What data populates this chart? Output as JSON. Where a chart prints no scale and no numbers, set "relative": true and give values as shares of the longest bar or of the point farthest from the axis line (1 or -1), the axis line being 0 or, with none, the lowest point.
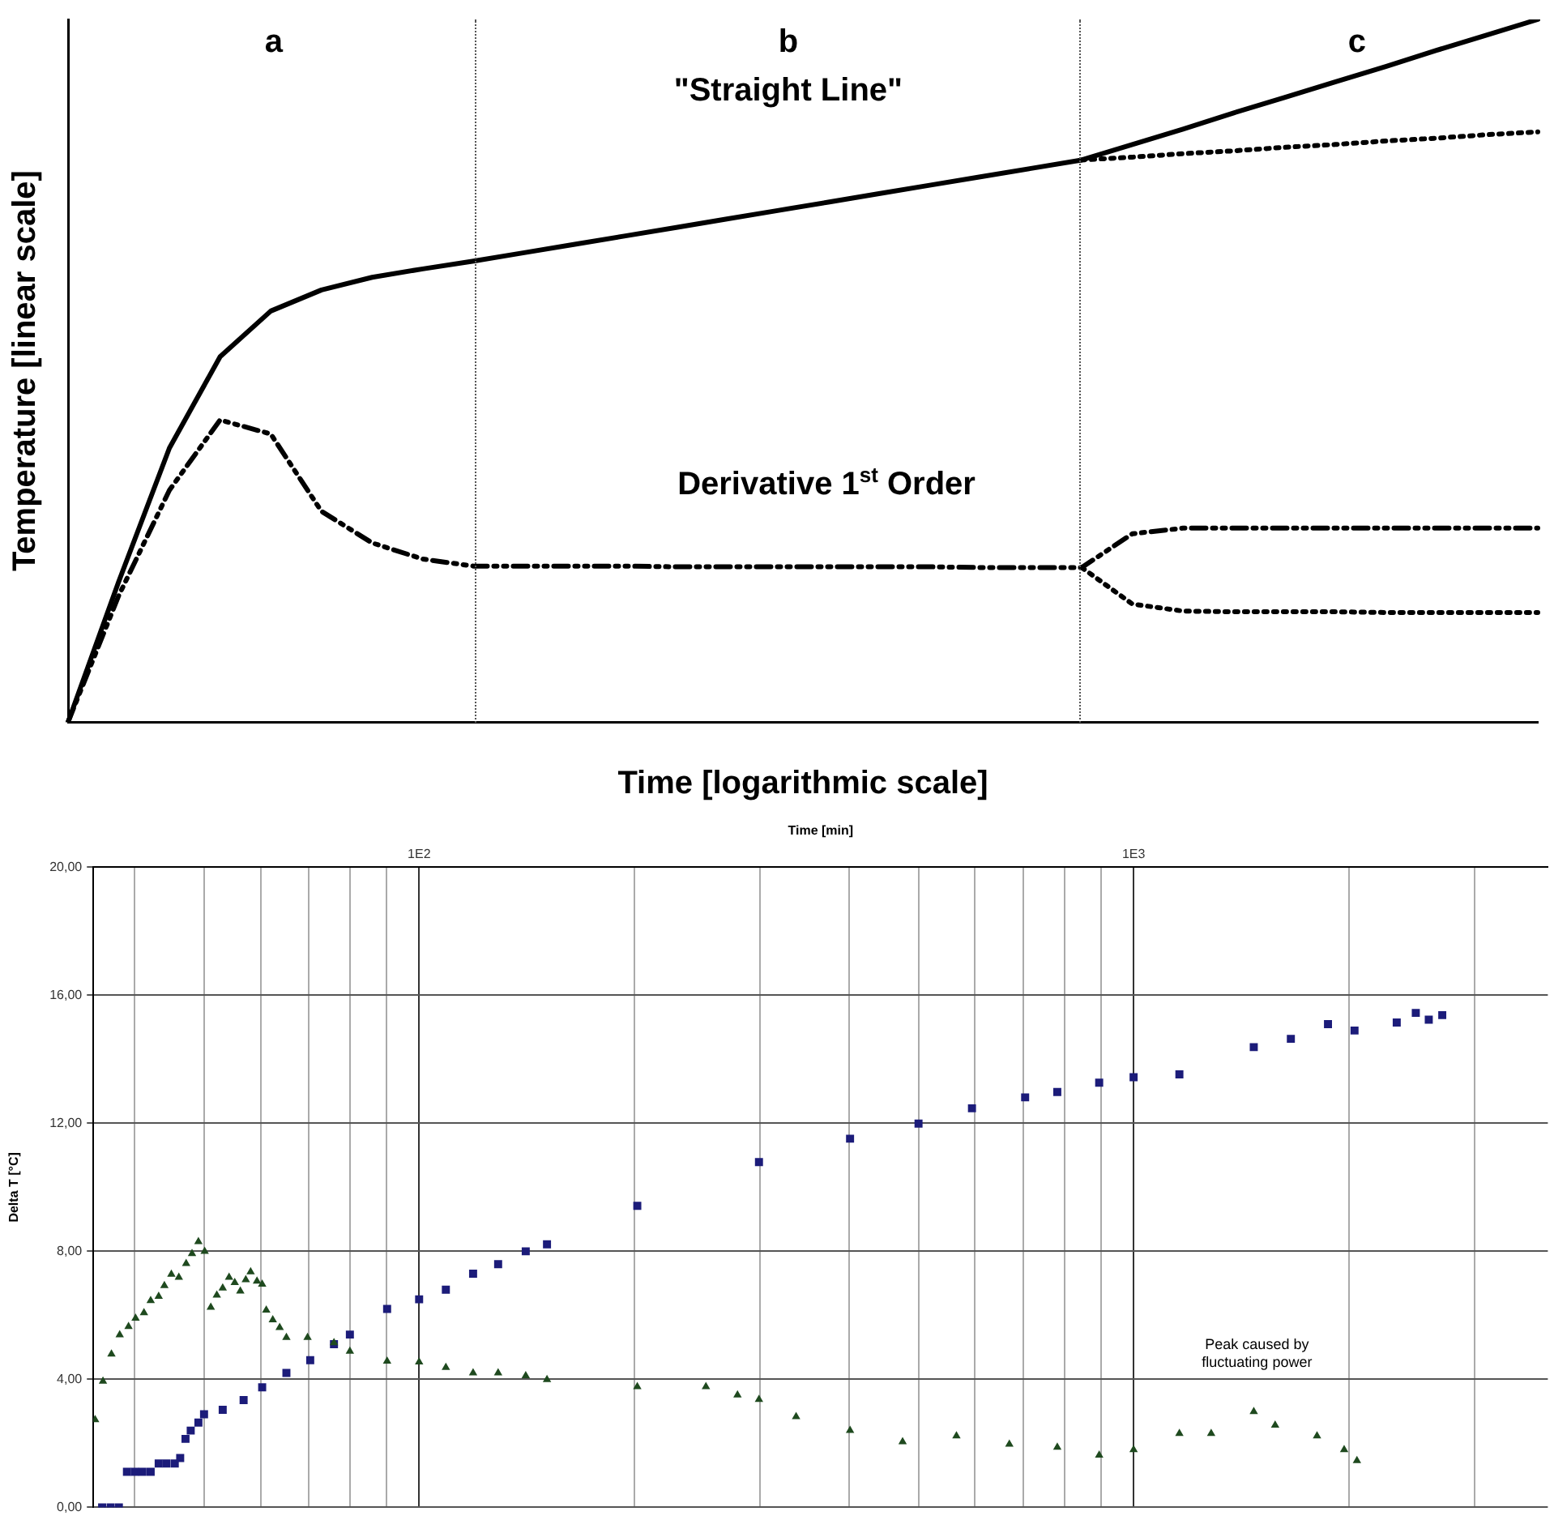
{
  "chart_data": [
    {
      "type": "line",
      "relative": true,
      "xlabel": "Time [logarithmic scale]",
      "ylabel": "Temperature [linear scale]",
      "grid": false,
      "legend": false,
      "marker": "none",
      "categories": [
        null,
        null,
        null,
        null,
        null,
        null,
        null,
        null,
        null,
        null,
        null,
        null,
        null,
        null,
        null,
        null,
        null,
        null,
        null,
        null,
        null,
        null,
        null,
        null,
        null,
        null,
        null,
        null,
        null,
        null
      ],
      "series": [
        {
          "color": "#000000",
          "line_style": "solid",
          "values": [
            0,
            0.2,
            0.39,
            0.52,
            0.585,
            0.615,
            0.633,
            0.645,
            0.656,
            0.668,
            0.68,
            0.692,
            0.704,
            0.716,
            0.728,
            0.74,
            0.752,
            0.764,
            0.776,
            0.788,
            0.8,
            0.822,
            0.844,
            0.867,
            0.889,
            0.911,
            0.933,
            0.956,
            0.978,
            1.0
          ]
        },
        {
          "color": "#000000",
          "line_style": "dotted",
          "values": [
            null,
            null,
            null,
            null,
            null,
            null,
            null,
            null,
            null,
            null,
            null,
            null,
            null,
            null,
            null,
            null,
            null,
            null,
            null,
            null,
            0.8,
            0.804,
            0.809,
            0.813,
            0.818,
            0.822,
            0.827,
            0.831,
            0.836,
            0.84
          ]
        },
        {
          "color": "#000000",
          "line_style": "dashed",
          "values": [
            0,
            0.18,
            0.33,
            0.43,
            0.41,
            0.3,
            0.255,
            0.232,
            0.222,
            0.222,
            0.222,
            0.222,
            0.221,
            0.221,
            0.221,
            0.221,
            0.221,
            0.221,
            0.22,
            0.22,
            0.22,
            0.268,
            0.276,
            0.276,
            0.276,
            0.276,
            0.276,
            0.276,
            0.276,
            0.276
          ]
        },
        {
          "color": "#000000",
          "line_style": "dotted",
          "values": [
            null,
            null,
            null,
            null,
            null,
            null,
            null,
            null,
            null,
            null,
            null,
            null,
            null,
            null,
            null,
            null,
            null,
            null,
            null,
            null,
            0.22,
            0.168,
            0.158,
            0.157,
            0.157,
            0.157,
            0.156,
            0.156,
            0.156,
            0.156
          ]
        }
      ],
      "annotations": [
        "a",
        "b",
        "c",
        "\"Straight Line\"",
        "Derivative 1$^{st}$ Order"
      ]
    },
    {
      "type": "scatter",
      "log": "x",
      "xlabel": "Time [min]",
      "ylabel": "Delta T [°C]",
      "xlim": [
        35,
        3800
      ],
      "ylim": [
        0,
        20
      ],
      "grid": true,
      "legend": false,
      "xticks": [
        {
          "value": 40,
          "label": null
        },
        {
          "value": 50,
          "label": null
        },
        {
          "value": 60,
          "label": null
        },
        {
          "value": 70,
          "label": null
        },
        {
          "value": 80,
          "label": null
        },
        {
          "value": 90,
          "label": null
        },
        {
          "value": 100,
          "label": "1E2"
        },
        {
          "value": 200,
          "label": null
        },
        {
          "value": 300,
          "label": null
        },
        {
          "value": 400,
          "label": null
        },
        {
          "value": 500,
          "label": null
        },
        {
          "value": 600,
          "label": null
        },
        {
          "value": 700,
          "label": null
        },
        {
          "value": 800,
          "label": null
        },
        {
          "value": 900,
          "label": null
        },
        {
          "value": 1000,
          "label": "1E3"
        },
        {
          "value": 2000,
          "label": null
        },
        {
          "value": 3000,
          "label": null
        }
      ],
      "yticks": [
        {
          "value": 0,
          "label": "0,00"
        },
        {
          "value": 4,
          "label": "4,00"
        },
        {
          "value": 8,
          "label": "8,00"
        },
        {
          "value": 12,
          "label": "12,00"
        },
        {
          "value": 16,
          "label": "16,00"
        },
        {
          "value": 20,
          "label": "20,00"
        }
      ],
      "series": [
        {
          "color": "#1c1c7a",
          "marker": "square",
          "x": [
            36,
            37,
            38,
            39,
            40,
            41,
            42.1,
            43.2,
            44.3,
            45.5,
            46.3,
            47.1,
            47.9,
            49.1,
            50,
            53.1,
            56.8,
            60.3,
            65.2,
            70.4,
            76,
            80,
            90.2,
            100,
            109,
            119,
            129,
            141,
            151,
            202,
            299,
            401,
            500,
            594,
            705,
            782,
            895,
            1000,
            1159,
            1473,
            1660,
            1871,
            2038,
            2335,
            2483,
            2589,
            2704
          ],
          "values": [
            0,
            0,
            0,
            1.11,
            1.11,
            1.11,
            1.11,
            1.37,
            1.37,
            1.37,
            1.54,
            2.14,
            2.4,
            2.65,
            2.91,
            3.05,
            3.35,
            3.75,
            4.2,
            4.6,
            5.1,
            5.4,
            6.2,
            6.5,
            6.8,
            7.3,
            7.6,
            8.0,
            8.22,
            9.42,
            10.79,
            11.52,
            11.99,
            12.47,
            12.81,
            12.98,
            13.27,
            13.44,
            13.53,
            14.38,
            14.64,
            15.1,
            14.9,
            15.15,
            15.45,
            15.24,
            15.38
          ]
        },
        {
          "color": "#1f4a1f",
          "marker": "triangle",
          "x": [
            35.2,
            36.1,
            37.1,
            38.1,
            39.2,
            40.1,
            41.2,
            42.1,
            43.2,
            44,
            45,
            46.1,
            47.2,
            48.1,
            49.1,
            50.1,
            51.1,
            52.1,
            53.1,
            54.2,
            55.2,
            56.2,
            57.2,
            58.1,
            59.3,
            60.3,
            61.1,
            62.4,
            63.8,
            65.2,
            69.8,
            76,
            80,
            90.2,
            100,
            109,
            119,
            129,
            141,
            151,
            202,
            252,
            279,
            299,
            337,
            401,
            475,
            565,
            670,
            782,
            895,
            1000,
            1159,
            1284,
            1473,
            1578,
            1806,
            1971,
            2054
          ],
          "values": [
            2.74,
            3.94,
            4.79,
            5.39,
            5.65,
            5.91,
            6.08,
            6.46,
            6.59,
            6.93,
            7.28,
            7.19,
            7.62,
            7.93,
            8.3,
            8.0,
            6.25,
            6.63,
            6.85,
            7.19,
            7.02,
            6.76,
            7.11,
            7.36,
            7.07,
            6.97,
            6.16,
            5.86,
            5.62,
            5.31,
            5.31,
            5.14,
            4.88,
            4.57,
            4.54,
            4.37,
            4.2,
            4.2,
            4.11,
            3.99,
            3.77,
            3.77,
            3.51,
            3.37,
            2.83,
            2.4,
            2.05,
            2.23,
            1.97,
            1.88,
            1.63,
            1.8,
            2.31,
            2.31,
            2.99,
            2.57,
            2.23,
            1.8,
            1.46
          ]
        }
      ],
      "annotations": [
        "Peak caused by fluctuating power"
      ]
    }
  ]
}
